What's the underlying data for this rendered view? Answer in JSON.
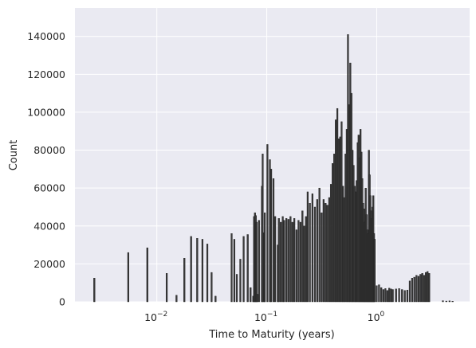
{
  "chart_data": {
    "type": "bar",
    "title": "",
    "xlabel": "Time to Maturity (years)",
    "ylabel": "Count",
    "x_scale": "log",
    "xlim": [
      0.0018,
      7
    ],
    "ylim": [
      0,
      155000
    ],
    "grid": true,
    "legend": "none",
    "colors": {
      "background": "#eaeaf2",
      "grid": "#ffffff",
      "bar_fill": "#3a3a3a",
      "bar_edge": "#1a1a1a"
    },
    "xticks": [
      {
        "value": 0.01,
        "base": "10",
        "exp": "−2"
      },
      {
        "value": 0.1,
        "base": "10",
        "exp": "−1"
      },
      {
        "value": 1,
        "base": "10",
        "exp": "0"
      }
    ],
    "yticks": [
      0,
      20000,
      40000,
      60000,
      80000,
      100000,
      120000,
      140000
    ],
    "series": [
      {
        "x": [
          0.0027,
          0.0055,
          0.0082,
          0.0123,
          0.0151,
          0.0178,
          0.0205,
          0.0233,
          0.026,
          0.0288,
          0.0315,
          0.0342,
          0.0479,
          0.0507,
          0.0534,
          0.0575,
          0.0616,
          0.0671,
          0.0712,
          0.0753,
          0.0767,
          0.0781,
          0.0795,
          0.0808,
          0.0822,
          0.0849,
          0.0904,
          0.0918,
          0.0945,
          0.0959,
          0.1014,
          0.1068,
          0.1096,
          0.1151,
          0.1192,
          0.126,
          0.1288,
          0.1342,
          0.1397,
          0.1438,
          0.1507,
          0.1575,
          0.1644,
          0.1712,
          0.178,
          0.1863,
          0.1945,
          0.2027,
          0.211,
          0.2192,
          0.2274,
          0.2356,
          0.2466,
          0.2603,
          0.274,
          0.2877,
          0.3014,
          0.3151,
          0.3288,
          0.3425,
          0.3562,
          0.3699,
          0.3836,
          0.3973,
          0.411,
          0.4247,
          0.4384,
          0.4521,
          0.4658,
          0.4795,
          0.4932,
          0.5068,
          0.5205,
          0.5342,
          0.5479,
          0.5616,
          0.5753,
          0.589,
          0.6027,
          0.6164,
          0.6301,
          0.6438,
          0.6575,
          0.6712,
          0.6849,
          0.6986,
          0.7123,
          0.726,
          0.7397,
          0.7534,
          0.7671,
          0.7808,
          0.7945,
          0.8082,
          0.8219,
          0.8356,
          0.8493,
          0.863,
          0.8767,
          0.8904,
          0.9041,
          0.9178,
          0.9315,
          0.9452,
          0.9589,
          1.0,
          1.05,
          1.1,
          1.15,
          1.2,
          1.25,
          1.3,
          1.35,
          1.4,
          1.5,
          1.6,
          1.7,
          1.8,
          1.9,
          2.0,
          2.1,
          2.2,
          2.3,
          2.4,
          2.5,
          2.6,
          2.7,
          2.8,
          2.9,
          3.0,
          4.0,
          4.3,
          4.6,
          4.9
        ],
        "values": [
          12500,
          26000,
          28500,
          15000,
          3500,
          23000,
          34500,
          33500,
          33000,
          30500,
          15500,
          3000,
          36000,
          33000,
          14500,
          22500,
          34500,
          35500,
          7500,
          3000,
          45000,
          47000,
          45500,
          42000,
          4000,
          43000,
          61000,
          78000,
          36500,
          47000,
          83000,
          75000,
          70000,
          65000,
          45000,
          30000,
          44000,
          42000,
          45000,
          43000,
          44000,
          43500,
          45000,
          42000,
          44000,
          38000,
          43000,
          42000,
          48000,
          40000,
          45000,
          58000,
          52000,
          57000,
          50000,
          54000,
          60000,
          47000,
          54000,
          52000,
          51000,
          55000,
          62000,
          73000,
          78000,
          96000,
          102000,
          86000,
          87000,
          95000,
          61000,
          55000,
          78000,
          91000,
          141000,
          104000,
          126000,
          110000,
          80000,
          72000,
          61000,
          58000,
          64000,
          84000,
          88000,
          76000,
          91000,
          79000,
          65000,
          52000,
          49000,
          42000,
          60000,
          46000,
          38000,
          36000,
          80000,
          67000,
          56000,
          48000,
          44000,
          50000,
          56000,
          36000,
          33000,
          8500,
          9000,
          7500,
          6500,
          7000,
          6000,
          7200,
          6800,
          6500,
          6800,
          7000,
          6500,
          6000,
          6200,
          11000,
          12500,
          13000,
          14000,
          13500,
          14500,
          15000,
          14000,
          15500,
          16000,
          15000,
          600,
          400,
          500,
          300
        ]
      }
    ]
  }
}
